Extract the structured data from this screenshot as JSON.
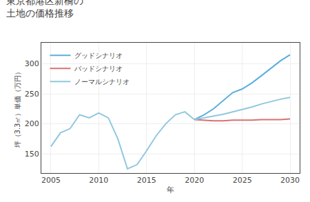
{
  "chart_data": {
    "type": "line",
    "title": "東京都港区新橋の\n土地の価格推移",
    "x_label": "年",
    "y_label": "坪（3.3㎡）単価（万円）",
    "series": [
      {
        "x": [
          2005,
          2006,
          2007,
          2008,
          2009,
          2010,
          2011,
          2012,
          2013,
          2014,
          2015,
          2016,
          2017,
          2018,
          2019,
          2020
        ],
        "values": [
          162,
          185,
          192,
          215,
          210,
          218,
          210,
          175,
          125,
          132,
          155,
          180,
          200,
          215,
          220,
          207
        ],
        "color": "#90c8de"
      },
      {
        "name": "グッドシナリオ",
        "x": [
          2020,
          2021,
          2022,
          2023,
          2024,
          2025,
          2026,
          2027,
          2028,
          2029,
          2030
        ],
        "values": [
          207,
          215,
          225,
          238,
          252,
          258,
          268,
          280,
          293,
          305,
          315
        ],
        "color": "#5aaedd"
      },
      {
        "name": "バッドシナリオ",
        "x": [
          2020,
          2021,
          2022,
          2023,
          2024,
          2025,
          2026,
          2027,
          2028,
          2029,
          2030
        ],
        "values": [
          207,
          206,
          205,
          205,
          206,
          206,
          206,
          207,
          207,
          207,
          208
        ],
        "color": "#d97070"
      },
      {
        "name": "ノーマルシナリオ",
        "x": [
          2020,
          2021,
          2022,
          2023,
          2024,
          2025,
          2026,
          2027,
          2028,
          2029,
          2030
        ],
        "values": [
          207,
          210,
          213,
          216,
          220,
          224,
          228,
          233,
          237,
          241,
          244
        ],
        "color": "#90c8de"
      }
    ],
    "xlim": [
      2004.0,
      2031.0
    ],
    "xticks": [
      2005,
      2010,
      2015,
      2020,
      2025,
      2030
    ],
    "ylim": [
      118,
      335
    ],
    "yticks": [
      150,
      200,
      250,
      300
    ],
    "grid": true,
    "legend": "upper left"
  }
}
